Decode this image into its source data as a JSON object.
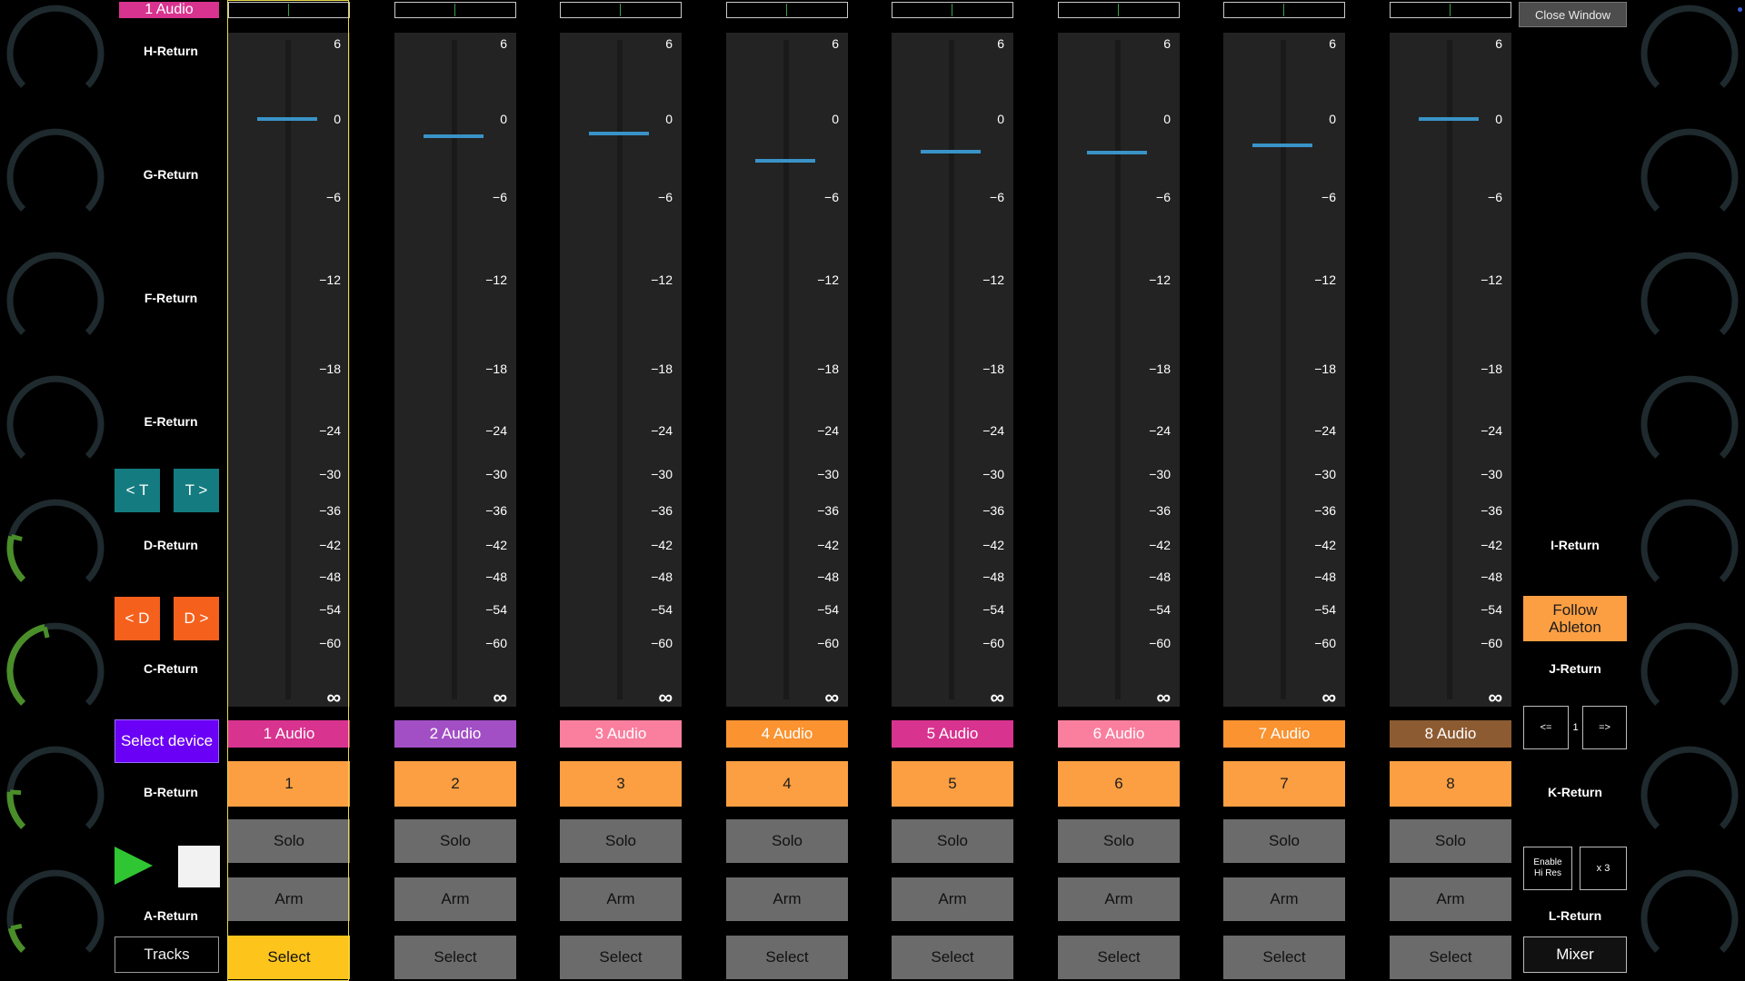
{
  "header": {
    "track_label": "1 Audio",
    "close_button": "Close Window"
  },
  "left_returns": [
    "H-Return",
    "G-Return",
    "F-Return",
    "E-Return",
    "D-Return",
    "C-Return",
    "B-Return",
    "A-Return"
  ],
  "right_returns": {
    "i": "I-Return",
    "j": "J-Return",
    "k": "K-Return",
    "l": "L-Return"
  },
  "left_knob_levels": [
    0,
    0,
    0,
    0,
    0.22,
    0.45,
    0.18,
    0.12
  ],
  "right_knob_levels": [
    0,
    0,
    0,
    0,
    0,
    0,
    0,
    0
  ],
  "nav": {
    "track_prev": "< T",
    "track_next": "T >",
    "device_prev": "< D",
    "device_next": "D >",
    "select_device": "Select device",
    "tracks": "Tracks"
  },
  "right_panel": {
    "follow": "Follow\nAbleton",
    "page_prev": "<=",
    "page_num": "1",
    "page_next": "=>",
    "hires": "Enable\nHi Res",
    "multiplier": "x 3",
    "mixer": "Mixer"
  },
  "scale": [
    "6",
    "0",
    "−6",
    "−12",
    "−18",
    "−24",
    "−30",
    "−36",
    "−42",
    "−48",
    "−54",
    "−60",
    "∞"
  ],
  "colors": {
    "accent_blue": "#3a93c8",
    "number_orange": "#fc9f43",
    "select_yellow": "#fdc51c",
    "teal": "#147c80",
    "orange_red": "#f5601d",
    "purple": "#6a00f5",
    "knob_green": "#4a8e2a"
  },
  "tracks": [
    {
      "name": "1 Audio",
      "number": "1",
      "solo": "Solo",
      "arm": "Arm",
      "select": "Select",
      "color": "#d8338f",
      "volume_db": 0,
      "selected": true
    },
    {
      "name": "2 Audio",
      "number": "2",
      "solo": "Solo",
      "arm": "Arm",
      "select": "Select",
      "color": "#a24fc6",
      "volume_db": -1.3,
      "selected": false
    },
    {
      "name": "3 Audio",
      "number": "3",
      "solo": "Solo",
      "arm": "Arm",
      "select": "Select",
      "color": "#fa7e9e",
      "volume_db": -1.1,
      "selected": false
    },
    {
      "name": "4 Audio",
      "number": "4",
      "solo": "Solo",
      "arm": "Arm",
      "select": "Select",
      "color": "#fa9330",
      "volume_db": -3.2,
      "selected": false
    },
    {
      "name": "5 Audio",
      "number": "5",
      "solo": "Solo",
      "arm": "Arm",
      "select": "Select",
      "color": "#d8338f",
      "volume_db": -2.5,
      "selected": false
    },
    {
      "name": "6 Audio",
      "number": "6",
      "solo": "Solo",
      "arm": "Arm",
      "select": "Select",
      "color": "#fa7e9e",
      "volume_db": -2.6,
      "selected": false
    },
    {
      "name": "7 Audio",
      "number": "7",
      "solo": "Solo",
      "arm": "Arm",
      "select": "Select",
      "color": "#fa9330",
      "volume_db": -2.0,
      "selected": false
    },
    {
      "name": "8 Audio",
      "number": "8",
      "solo": "Solo",
      "arm": "Arm",
      "select": "Select",
      "color": "#8d5b32",
      "volume_db": 0,
      "selected": false
    }
  ]
}
